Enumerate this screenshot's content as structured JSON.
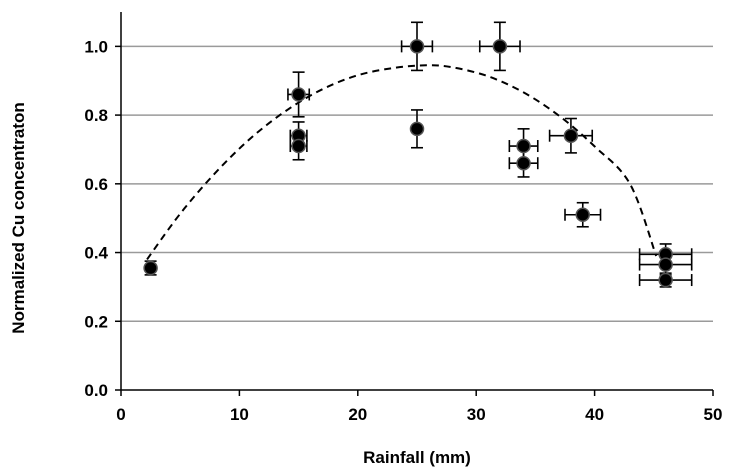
{
  "chart_data": {
    "type": "scatter",
    "xlabel": "Rainfall (mm)",
    "ylabel": "Normalized Cu concentraton",
    "xlim": [
      0,
      50
    ],
    "ylim": [
      0,
      1.1
    ],
    "x_ticks": [
      "0",
      "10",
      "20",
      "30",
      "40",
      "50"
    ],
    "y_ticks": [
      "0.0",
      "0.2",
      "0.4",
      "0.6",
      "0.8",
      "1.0"
    ],
    "grid": "horizontal",
    "legend": "none",
    "marker_color": "#000000",
    "series": [
      {
        "points": [
          {
            "x": 2.5,
            "y": 0.355,
            "y_err": 0.02,
            "x_err": 0
          },
          {
            "x": 15,
            "y": 0.86,
            "y_err": 0.065,
            "x_err": 0.9
          },
          {
            "x": 15,
            "y": 0.74,
            "y_err": 0.04,
            "x_err": 0.7
          },
          {
            "x": 15,
            "y": 0.71,
            "y_err": 0.04,
            "x_err": 0.7
          },
          {
            "x": 25,
            "y": 1.0,
            "y_err": 0.07,
            "x_err": 1.3
          },
          {
            "x": 25,
            "y": 0.76,
            "y_err": 0.055,
            "x_err": 0
          },
          {
            "x": 32,
            "y": 1.0,
            "y_err": 0.07,
            "x_err": 1.7
          },
          {
            "x": 34,
            "y": 0.71,
            "y_err": 0.05,
            "x_err": 1.2
          },
          {
            "x": 34,
            "y": 0.66,
            "y_err": 0.04,
            "x_err": 1.2
          },
          {
            "x": 38,
            "y": 0.74,
            "y_err": 0.05,
            "x_err": 1.8
          },
          {
            "x": 39,
            "y": 0.51,
            "y_err": 0.035,
            "x_err": 1.5
          },
          {
            "x": 46,
            "y": 0.395,
            "y_err": 0.03,
            "x_err": 2.2
          },
          {
            "x": 46,
            "y": 0.365,
            "y_err": 0.03,
            "x_err": 2.2
          },
          {
            "x": 46,
            "y": 0.32,
            "y_err": 0.02,
            "x_err": 2.2
          }
        ]
      }
    ],
    "trendline": {
      "style": "dashed",
      "type": "quadratic",
      "x": [
        2.2,
        5,
        8,
        11,
        14,
        17,
        20,
        23,
        25.8,
        28,
        31,
        34,
        37,
        40,
        43,
        45.2
      ],
      "y": [
        0.38,
        0.513,
        0.633,
        0.734,
        0.814,
        0.875,
        0.916,
        0.937,
        0.945,
        0.939,
        0.913,
        0.866,
        0.798,
        0.709,
        0.599,
        0.39
      ]
    }
  }
}
